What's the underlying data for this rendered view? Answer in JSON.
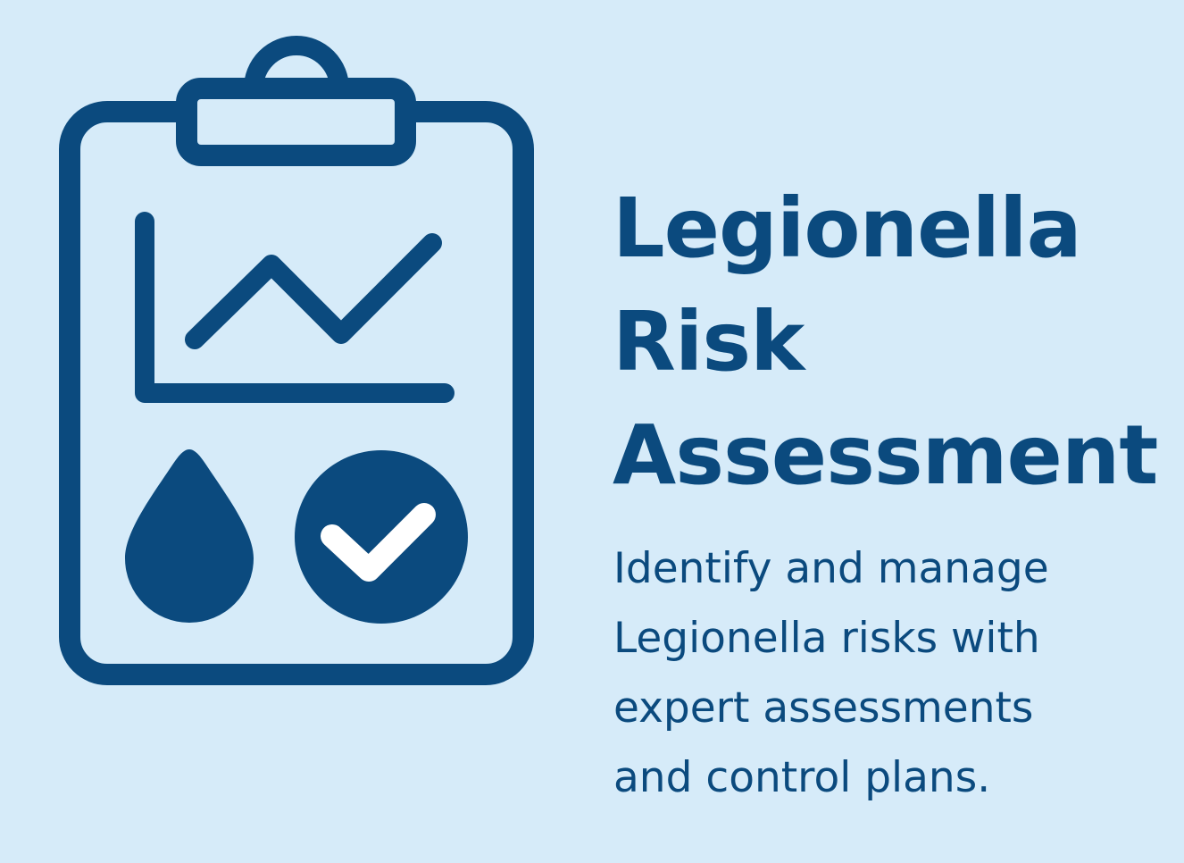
{
  "colors": {
    "background": "#d6ebf9",
    "accent": "#0b4a7e",
    "check": "#ffffff"
  },
  "illustration": {
    "icon": "clipboard-chart-icon",
    "parts": [
      "line-chart-icon",
      "water-drop-icon",
      "check-circle-icon"
    ]
  },
  "title_lines": [
    "Legionella",
    "Risk",
    "Assessment"
  ],
  "description_lines": [
    "Identify and manage",
    "Legionella risks with",
    "expert assessments",
    "and control plans."
  ]
}
